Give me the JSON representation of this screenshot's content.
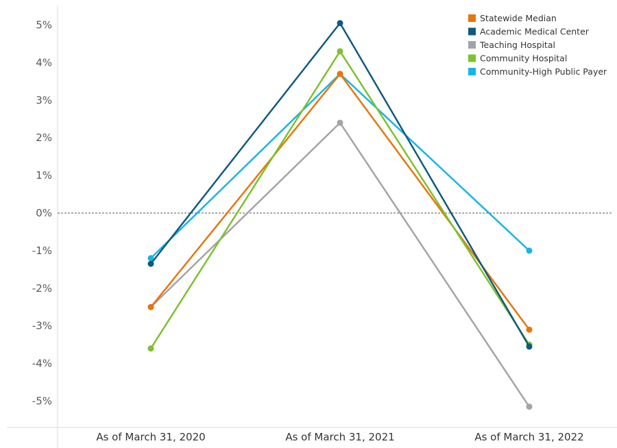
{
  "chart_data": {
    "type": "line",
    "title": "",
    "xlabel": "",
    "ylabel": "",
    "categories": [
      "As of March 31, 2020",
      "As of March 31, 2021",
      "As of March 31, 2022"
    ],
    "ylim": [
      -6.0,
      5.5
    ],
    "yticks": [
      5,
      4,
      3,
      2,
      1,
      0,
      -1,
      -2,
      -3,
      -4,
      -5
    ],
    "ytick_labels": [
      "5%",
      "4%",
      "3%",
      "2%",
      "1%",
      "0%",
      "-1%",
      "-2%",
      "-3%",
      "-4%",
      "-5%"
    ],
    "reference_line": {
      "y": 0,
      "style": "dashed"
    },
    "grid": false,
    "legend_position": "top-right",
    "series": [
      {
        "name": "Statewide Median",
        "color": "#e8750a",
        "values": [
          -2.5,
          3.7,
          -3.1
        ]
      },
      {
        "name": "Academic Medical Center",
        "color": "#0e5b7e",
        "values": [
          -1.35,
          5.05,
          -3.55
        ]
      },
      {
        "name": "Teaching Hospital",
        "color": "#a3a3a8",
        "values": [
          -2.5,
          2.4,
          -5.15
        ]
      },
      {
        "name": "Community Hospital",
        "color": "#7cc12e",
        "values": [
          -3.6,
          4.3,
          -3.5
        ]
      },
      {
        "name": "Community-High Public Payer",
        "color": "#17b5e6",
        "values": [
          -1.2,
          3.7,
          -1.0
        ]
      }
    ],
    "draw_order": [
      2,
      4,
      0,
      3,
      1
    ]
  }
}
